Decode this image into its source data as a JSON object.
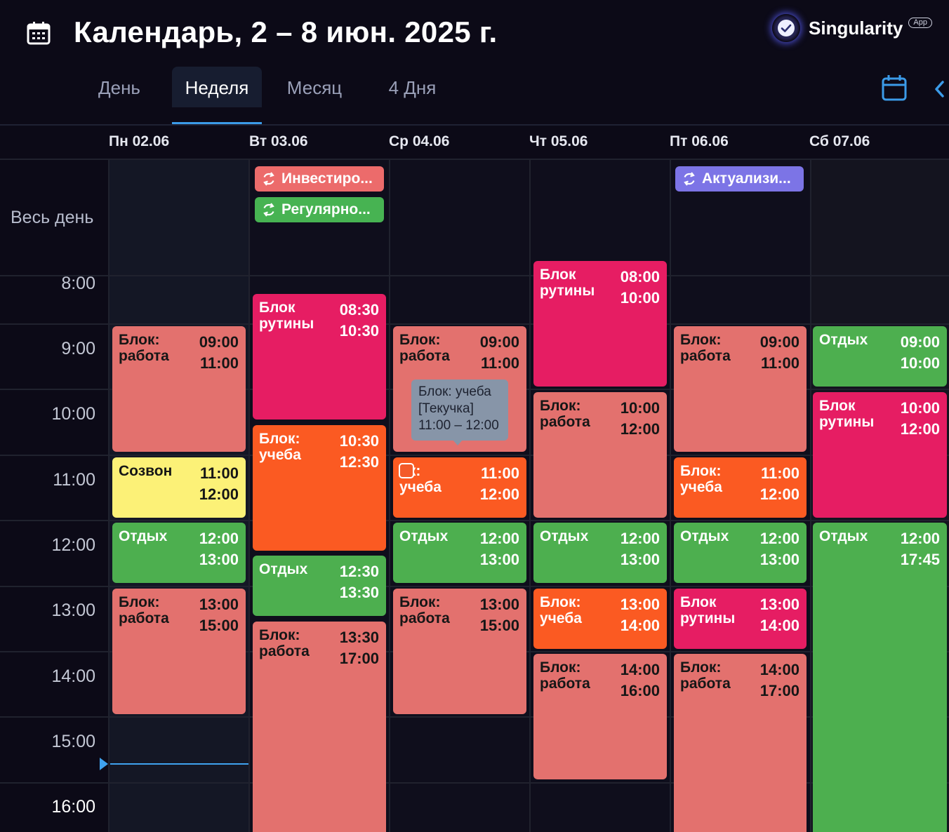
{
  "header": {
    "title": "Календарь, 2 – 8 июн. 2025 г.",
    "brand_name": "Singularity",
    "brand_badge": "App"
  },
  "tabs": [
    {
      "label": "День",
      "selected": false
    },
    {
      "label": "Неделя",
      "selected": true
    },
    {
      "label": "Месяц",
      "selected": false
    },
    {
      "label": "4 Дня",
      "selected": false
    }
  ],
  "days": [
    "Пн 02.06",
    "Вт 03.06",
    "Ср 04.06",
    "Чт 05.06",
    "Пт 06.06",
    "Сб 07.06"
  ],
  "allday_label": "Весь день",
  "hours": [
    "8:00",
    "9:00",
    "10:00",
    "11:00",
    "12:00",
    "13:00",
    "14:00",
    "15:00",
    "16:00"
  ],
  "allday_events": [
    {
      "title": "Инвестиро...",
      "color": "#ec6b6b"
    },
    {
      "title": "Регулярно...",
      "color": "#47b352"
    },
    {
      "title": "Актуализи...",
      "color": "#7c74e6"
    }
  ],
  "colors": {
    "work": "#e3716e",
    "routine": "#e61d63",
    "study": "#fb5a22",
    "rest": "#4daf4f",
    "call": "#fcf177",
    "accent": "#3b9be8"
  },
  "events": {
    "mon_work1": {
      "title": "Блок:\nработа",
      "start": "09:00",
      "end": "11:00"
    },
    "mon_call": {
      "title": "Созвон",
      "start": "11:00",
      "end": "12:00"
    },
    "mon_rest": {
      "title": "Отдых",
      "start": "12:00",
      "end": "13:00"
    },
    "mon_work2": {
      "title": "Блок:\nработа",
      "start": "13:00",
      "end": "15:00"
    },
    "tue_routine": {
      "title": "Блок\nрутины",
      "start": "08:30",
      "end": "10:30"
    },
    "tue_study": {
      "title": "Блок:\nучеба",
      "start": "10:30",
      "end": "12:30"
    },
    "tue_rest": {
      "title": "Отдых",
      "start": "12:30",
      "end": "13:30"
    },
    "tue_work": {
      "title": "Блок:\nработа",
      "start": "13:30",
      "end": "17:00"
    },
    "wed_work1": {
      "title": "Блок:\nработа",
      "start": "09:00",
      "end": "11:00"
    },
    "wed_study": {
      "title": "   ок:\nучеба",
      "start": "11:00",
      "end": "12:00"
    },
    "wed_rest": {
      "title": "Отдых",
      "start": "12:00",
      "end": "13:00"
    },
    "wed_work2": {
      "title": "Блок:\nработа",
      "start": "13:00",
      "end": "15:00"
    },
    "thu_routine": {
      "title": "Блок\nрутины",
      "start": "08:00",
      "end": "10:00"
    },
    "thu_work1": {
      "title": "Блок:\nработа",
      "start": "10:00",
      "end": "12:00"
    },
    "thu_rest": {
      "title": "Отдых",
      "start": "12:00",
      "end": "13:00"
    },
    "thu_study": {
      "title": "Блок:\nучеба",
      "start": "13:00",
      "end": "14:00"
    },
    "thu_work2": {
      "title": "Блок:\nработа",
      "start": "14:00",
      "end": "16:00"
    },
    "fri_work1": {
      "title": "Блок:\nработа",
      "start": "09:00",
      "end": "11:00"
    },
    "fri_study": {
      "title": "Блок:\nучеба",
      "start": "11:00",
      "end": "12:00"
    },
    "fri_rest": {
      "title": "Отдых",
      "start": "12:00",
      "end": "13:00"
    },
    "fri_routine": {
      "title": "Блок\nрутины",
      "start": "13:00",
      "end": "14:00"
    },
    "fri_work2": {
      "title": "Блок:\nработа",
      "start": "14:00",
      "end": "17:00"
    },
    "sat_rest1": {
      "title": "Отдых",
      "start": "09:00",
      "end": "10:00"
    },
    "sat_routine": {
      "title": "Блок\nрутины",
      "start": "10:00",
      "end": "12:00"
    },
    "sat_rest2": {
      "title": "Отдых",
      "start": "12:00",
      "end": "17:45"
    }
  },
  "tooltip": {
    "line1": "Блок: учеба",
    "line2": "[Текучка]",
    "line3": "11:00 – 12:00"
  }
}
